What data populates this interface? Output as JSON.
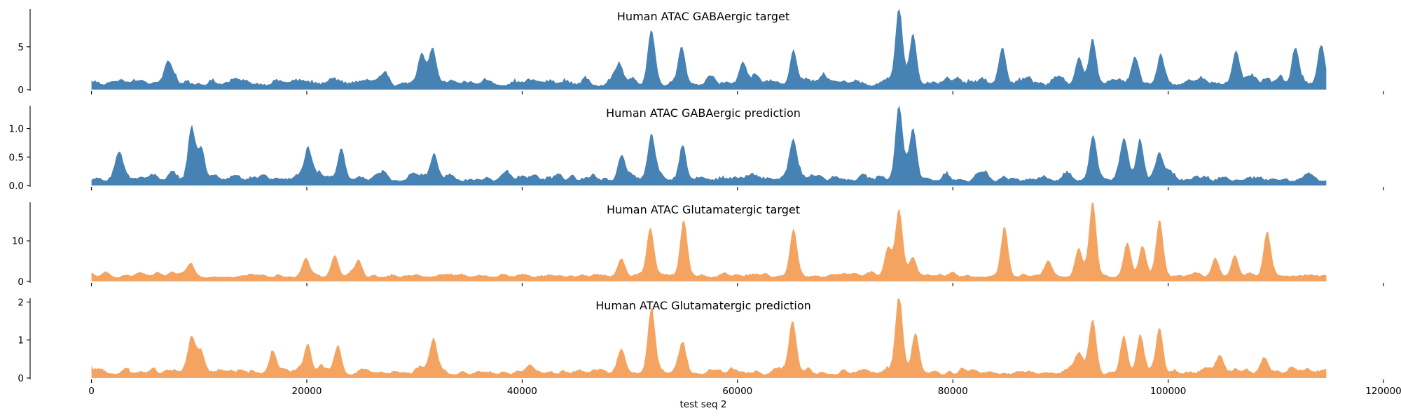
{
  "chart_data": [
    {
      "type": "area",
      "title": "Human ATAC GABAergic target",
      "color": "#4682b4",
      "ylim": [
        0,
        9.4
      ],
      "yticks": [
        0,
        5
      ],
      "ytick_labels": [
        "0",
        "5"
      ],
      "x_extent": [
        0,
        114688
      ],
      "baseline": 0.4,
      "roughness": 0.9,
      "peaks": [
        [
          52000,
          6.2
        ],
        [
          75000,
          9.0
        ],
        [
          76300,
          6.0
        ],
        [
          54800,
          4.5
        ],
        [
          65200,
          3.5
        ],
        [
          84600,
          3.8
        ],
        [
          93000,
          4.6
        ],
        [
          99300,
          3.2
        ],
        [
          106300,
          4.0
        ],
        [
          111800,
          3.6
        ],
        [
          114200,
          4.6
        ],
        [
          7100,
          2.7
        ],
        [
          31700,
          3.5
        ],
        [
          30700,
          2.7
        ],
        [
          49000,
          2.4
        ],
        [
          91700,
          3.0
        ],
        [
          97000,
          2.8
        ],
        [
          60500,
          2.5
        ]
      ]
    },
    {
      "type": "area",
      "title": "Human ATAC GABAergic prediction",
      "color": "#4682b4",
      "ylim": [
        0,
        1.4
      ],
      "yticks": [
        0,
        0.5,
        1.0
      ],
      "ytick_labels": [
        "0.0",
        "0.5",
        "1.0"
      ],
      "x_extent": [
        0,
        114688
      ],
      "baseline": 0.06,
      "roughness": 0.13,
      "peaks": [
        [
          9300,
          0.9
        ],
        [
          52000,
          0.8
        ],
        [
          75000,
          1.35
        ],
        [
          76300,
          0.88
        ],
        [
          54900,
          0.55
        ],
        [
          65200,
          0.65
        ],
        [
          93000,
          0.75
        ],
        [
          95900,
          0.7
        ],
        [
          97400,
          0.62
        ],
        [
          99200,
          0.5
        ],
        [
          2600,
          0.38
        ],
        [
          10200,
          0.56
        ],
        [
          20100,
          0.56
        ],
        [
          23200,
          0.58
        ],
        [
          31800,
          0.48
        ],
        [
          49200,
          0.4
        ]
      ]
    },
    {
      "type": "area",
      "title": "Human ATAC Glutamatergic target",
      "color": "#f4a460",
      "ylim": [
        0,
        19.5
      ],
      "yticks": [
        0,
        10
      ],
      "ytick_labels": [
        "0",
        "10"
      ],
      "x_extent": [
        0,
        114688
      ],
      "baseline": 0.9,
      "roughness": 1.0,
      "peaks": [
        [
          93000,
          18.5
        ],
        [
          75000,
          16.5
        ],
        [
          55000,
          13.5
        ],
        [
          51900,
          12.0
        ],
        [
          65200,
          12.0
        ],
        [
          84800,
          12.0
        ],
        [
          99200,
          14.0
        ],
        [
          109200,
          11.0
        ],
        [
          74000,
          7.5
        ],
        [
          96200,
          8.0
        ],
        [
          97600,
          7.0
        ],
        [
          91700,
          7.0
        ],
        [
          76300,
          5.0
        ],
        [
          88900,
          4.0
        ],
        [
          22600,
          5.0
        ],
        [
          24800,
          3.6
        ],
        [
          19900,
          3.8
        ],
        [
          49200,
          4.5
        ],
        [
          104400,
          4.0
        ],
        [
          106200,
          5.5
        ],
        [
          9200,
          3.0
        ]
      ]
    },
    {
      "type": "area",
      "title": "Human ATAC Glutamatergic prediction",
      "color": "#f4a460",
      "ylim": [
        0,
        2.1
      ],
      "yticks": [
        0,
        1,
        2
      ],
      "ytick_labels": [
        "0",
        "1",
        "2"
      ],
      "x_extent": [
        0,
        114688
      ],
      "baseline": 0.08,
      "roughness": 0.16,
      "peaks": [
        [
          75000,
          2.0
        ],
        [
          52000,
          1.7
        ],
        [
          65100,
          1.35
        ],
        [
          93000,
          1.3
        ],
        [
          99200,
          1.2
        ],
        [
          76500,
          1.05
        ],
        [
          95900,
          0.95
        ],
        [
          97400,
          0.92
        ],
        [
          9300,
          0.92
        ],
        [
          20100,
          0.75
        ],
        [
          31800,
          0.82
        ],
        [
          54900,
          0.8
        ],
        [
          49200,
          0.6
        ],
        [
          22900,
          0.62
        ],
        [
          10200,
          0.55
        ],
        [
          16900,
          0.5
        ],
        [
          91700,
          0.5
        ],
        [
          104800,
          0.4
        ],
        [
          109000,
          0.38
        ]
      ]
    }
  ],
  "shared_x": {
    "xlim": [
      -5700,
      120000
    ],
    "ticks": [
      0,
      20000,
      40000,
      60000,
      80000,
      100000,
      120000
    ],
    "tick_labels": [
      "0",
      "20000",
      "40000",
      "60000",
      "80000",
      "100000",
      "120000"
    ],
    "xlabel": "test seq 2"
  }
}
